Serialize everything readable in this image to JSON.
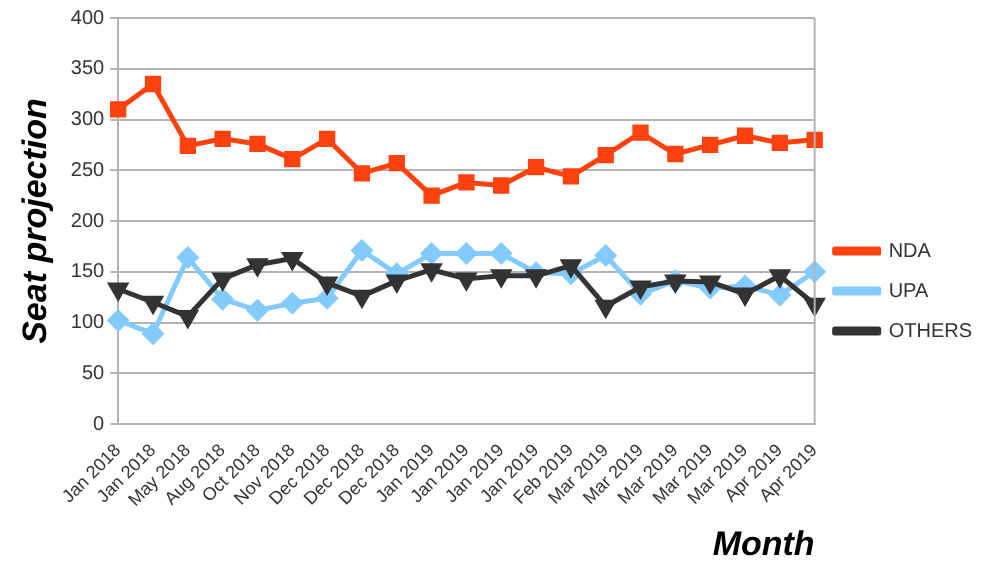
{
  "chart_data": {
    "type": "line",
    "xlabel": "Month",
    "ylabel": "Seat projection",
    "categories": [
      "Jan 2018",
      "Jan 2018",
      "May 2018",
      "Aug 2018",
      "Oct 2018",
      "Nov 2018",
      "Dec 2018",
      "Dec 2018",
      "Dec 2018",
      "Jan 2019",
      "Jan 2019",
      "Jan 2019",
      "Jan 2019",
      "Feb 2019",
      "Mar 2019",
      "Mar 2019",
      "Mar 2019",
      "Mar 2019",
      "Mar 2019",
      "Apr 2019",
      "Apr 2019"
    ],
    "series": [
      {
        "name": "NDA",
        "color": "#ff420e",
        "marker": "square",
        "values": [
          310,
          335,
          274,
          281,
          276,
          261,
          281,
          247,
          257,
          225,
          238,
          235,
          253,
          244,
          265,
          287,
          266,
          275,
          284,
          277,
          280
        ]
      },
      {
        "name": "UPA",
        "color": "#83caff",
        "marker": "diamond",
        "values": [
          102,
          89,
          164,
          123,
          112,
          119,
          124,
          171,
          148,
          168,
          168,
          168,
          149,
          148,
          166,
          128,
          141,
          134,
          136,
          127,
          150
        ]
      },
      {
        "name": "OTHERS",
        "color": "#333333",
        "marker": "triangle",
        "values": [
          133,
          120,
          106,
          143,
          157,
          163,
          139,
          126,
          141,
          152,
          143,
          146,
          146,
          156,
          116,
          135,
          141,
          140,
          128,
          146,
          118
        ]
      }
    ],
    "ylim": [
      0,
      400
    ],
    "yticks": [
      0,
      50,
      100,
      150,
      200,
      250,
      300,
      350,
      400
    ],
    "grid": "y",
    "legend": "right",
    "line_style": "solid"
  }
}
